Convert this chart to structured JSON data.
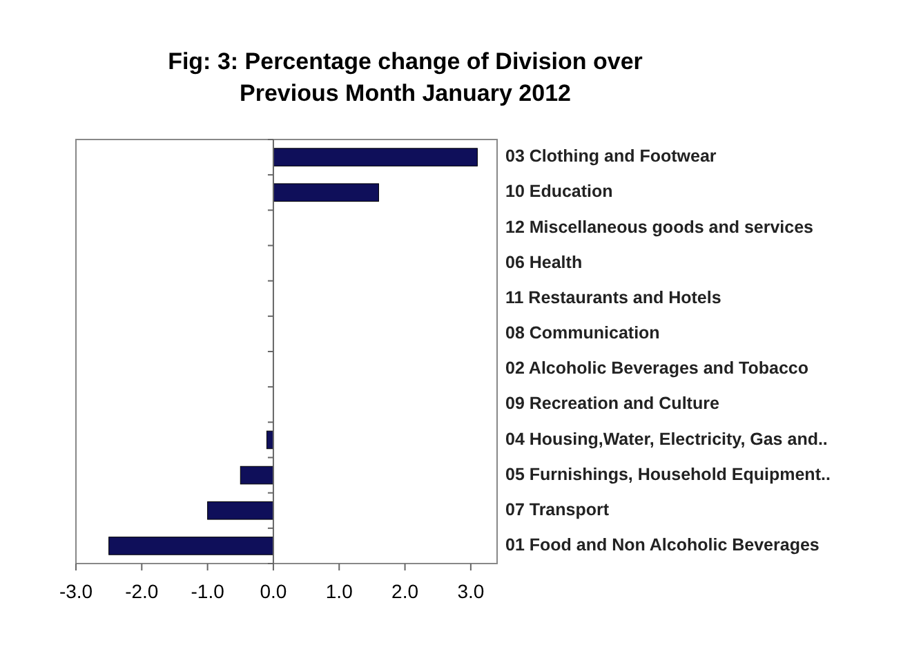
{
  "chart_data": {
    "type": "bar",
    "orientation": "horizontal",
    "title": "Fig: 3: Percentage change of Division over Previous Month January 2012",
    "categories": [
      "03 Clothing and Footwear",
      "10 Education",
      "12 Miscellaneous goods and services",
      "06 Health",
      "11 Restaurants and Hotels",
      "08 Communication",
      "02 Alcoholic Beverages and Tobacco",
      "09 Recreation and Culture",
      "04 Housing,Water, Electricity, Gas and..",
      "05 Furnishings, Household Equipment..",
      "07 Transport",
      "01 Food and Non Alcoholic Beverages"
    ],
    "values": [
      3.1,
      1.6,
      0,
      0,
      0,
      0,
      0,
      0,
      -0.1,
      -0.5,
      -1.0,
      -2.5
    ],
    "color": "#0f0f5a",
    "xlim": [
      -3.0,
      3.4
    ],
    "xticks": [
      {
        "value": -3,
        "label": "-3.0"
      },
      {
        "value": -2,
        "label": "-2.0"
      },
      {
        "value": -1,
        "label": "-1.0"
      },
      {
        "value": 0,
        "label": "0.0"
      },
      {
        "value": 1,
        "label": "1.0"
      },
      {
        "value": 2,
        "label": "2.0"
      },
      {
        "value": 3,
        "label": "3.0"
      }
    ],
    "tick_labels": "x"
  }
}
